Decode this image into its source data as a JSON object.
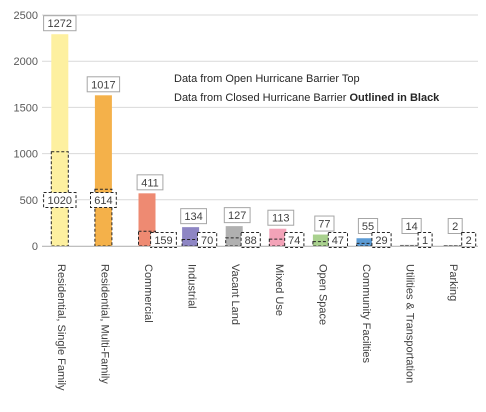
{
  "chart_data": {
    "type": "bar",
    "title": "",
    "xlabel": "",
    "ylabel": "",
    "ylim": [
      0,
      2500
    ],
    "yticks": [
      0,
      500,
      1000,
      1500,
      2000,
      2500
    ],
    "grid": true,
    "legend": "none",
    "categories": [
      "Residential, Single Family",
      "Residential, Multi-Family",
      "Commercial",
      "Industrial",
      "Vacant Land",
      "Mixed Use",
      "Open Space",
      "Community Facilties",
      "Utilities & Transportation",
      "Parking"
    ],
    "series": [
      {
        "name": "Data from Open Hurricane Barrier",
        "values": [
          2292,
          1631,
          570,
          204,
          215,
          187,
          124,
          84,
          15,
          4
        ],
        "labels": [
          "1272",
          "1017",
          "411",
          "134",
          "127",
          "113",
          "77",
          "55",
          "14",
          "2"
        ],
        "colors": [
          "#fdf0a0",
          "#f4b14a",
          "#ee8a72",
          "#8e86c4",
          "#b0b0b0",
          "#f3a3b8",
          "#a9d18e",
          "#5b9bd5",
          "#e6e6e6",
          "#e6e6e6"
        ]
      },
      {
        "name": "Data from Closed Hurricane Barrier",
        "values": [
          1020,
          614,
          159,
          70,
          88,
          74,
          47,
          29,
          1,
          2
        ],
        "labels": [
          "1020",
          "614",
          "159",
          "70",
          "88",
          "74",
          "47",
          "29",
          "1",
          "2"
        ]
      }
    ],
    "annotations": [
      {
        "text": "Data from Open Hurricane Barrier Top",
        "bold": ""
      },
      {
        "text": "Data from Closed Hurricane Barrier ",
        "bold": "Outlined in Black"
      }
    ]
  }
}
